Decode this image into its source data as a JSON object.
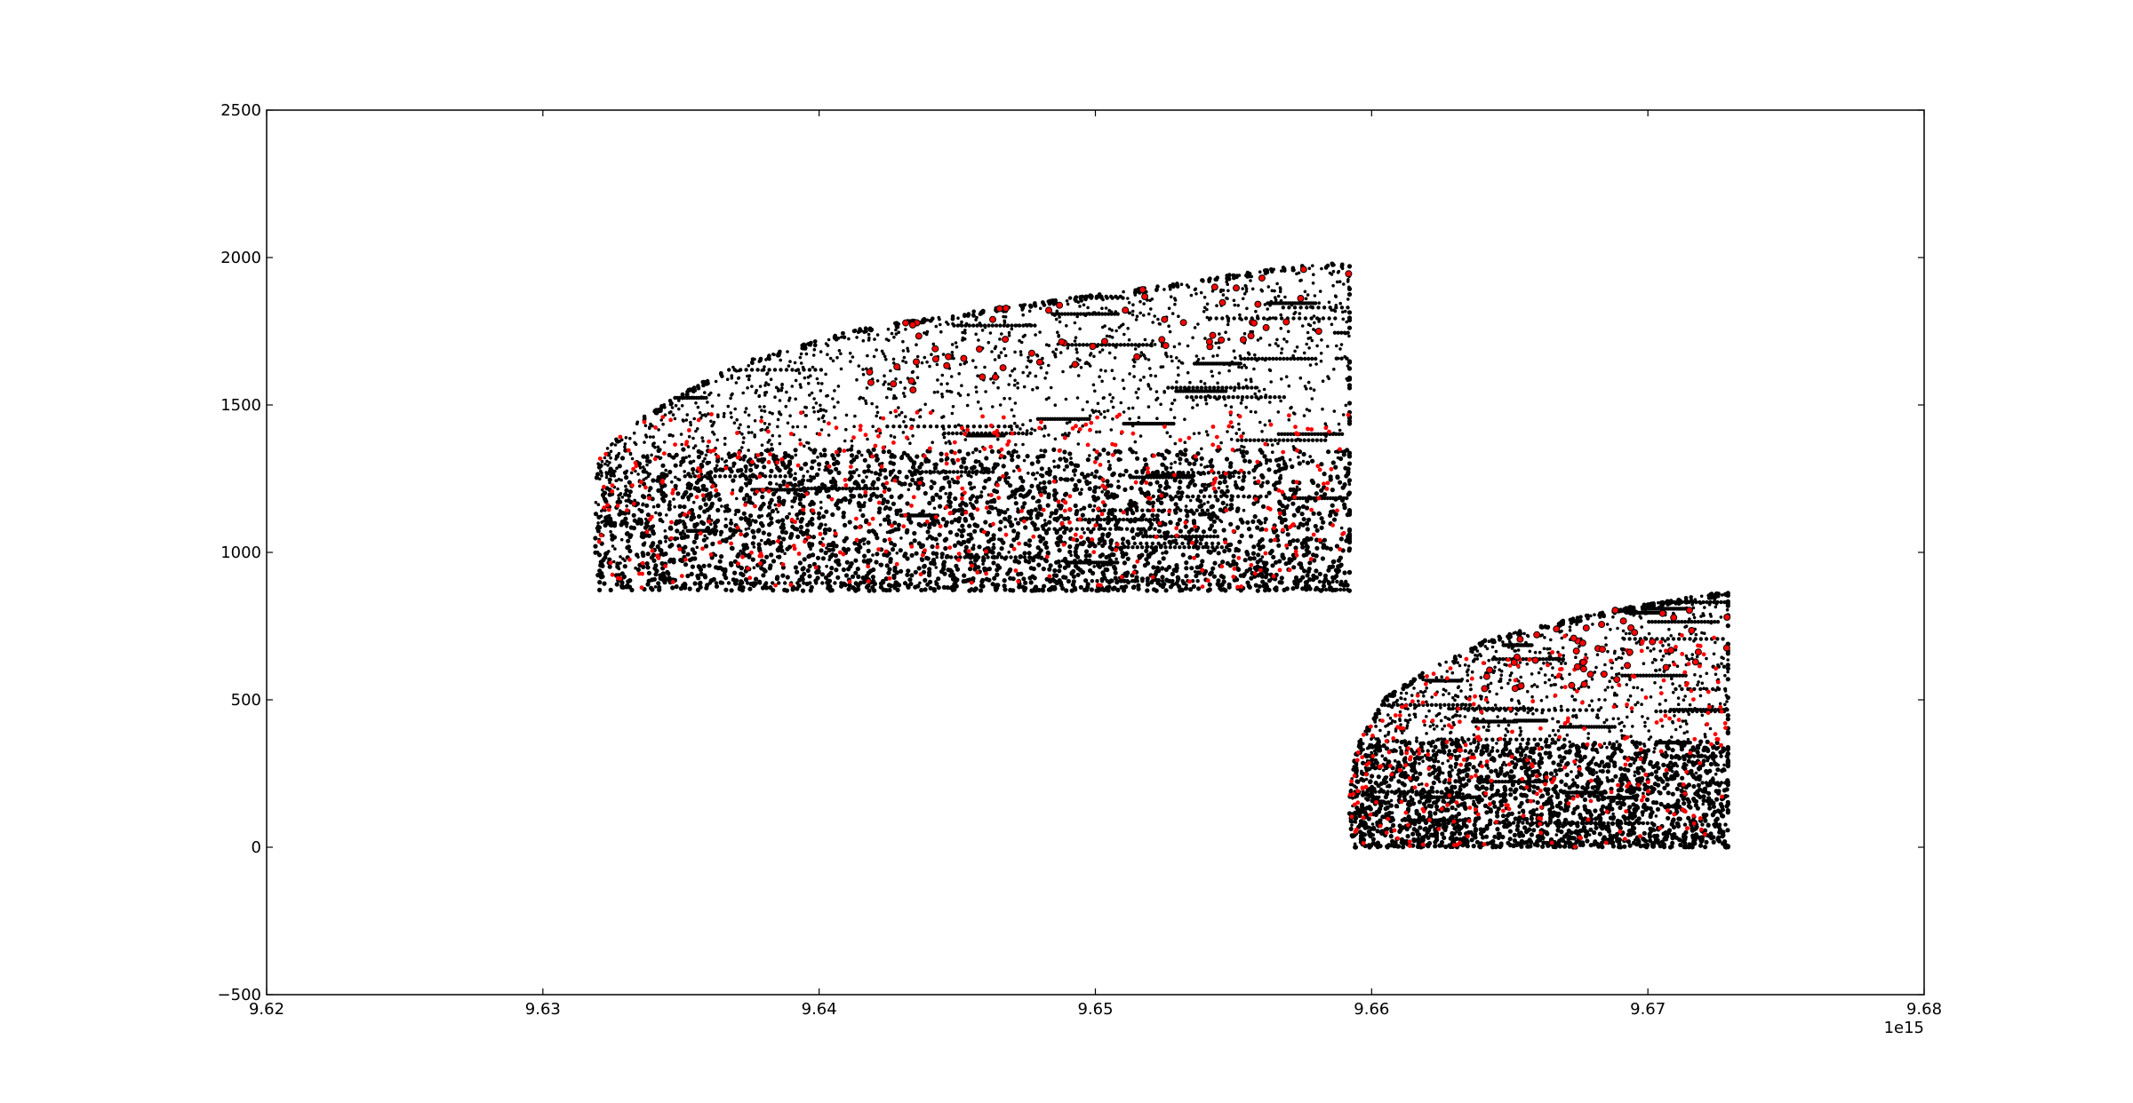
{
  "chart_data": {
    "type": "scatter",
    "title": "",
    "xlabel": "",
    "ylabel": "",
    "x_offset_label": "1e15",
    "xlim": [
      9.62,
      9.68
    ],
    "ylim": [
      -500,
      2500
    ],
    "x_ticks": [
      9.62,
      9.63,
      9.64,
      9.65,
      9.66,
      9.67,
      9.68
    ],
    "x_tick_labels": [
      "9.62",
      "9.63",
      "9.64",
      "9.65",
      "9.66",
      "9.67",
      "9.68"
    ],
    "y_ticks": [
      -500,
      0,
      500,
      1000,
      1500,
      2000,
      2500
    ],
    "y_tick_labels": [
      "−500",
      "0",
      "500",
      "1000",
      "1500",
      "2000",
      "2500"
    ],
    "grid": false,
    "legend": "none",
    "colors": {
      "primary": "#000000",
      "secondary": "#ff0000",
      "frame": "#000000"
    },
    "clusters": [
      {
        "x_range": [
          9.6319,
          9.6592
        ],
        "y_floor": 870,
        "envelope": [
          [
            9.6319,
            1230
          ],
          [
            9.632,
            1320
          ],
          [
            9.633,
            1420
          ],
          [
            9.6345,
            1510
          ],
          [
            9.637,
            1640
          ],
          [
            9.6415,
            1760
          ],
          [
            9.6465,
            1830
          ],
          [
            9.652,
            1900
          ],
          [
            9.6565,
            1965
          ],
          [
            9.6592,
            1985
          ]
        ],
        "dense_band_top": 1350,
        "red_band": [
          880,
          1480
        ]
      },
      {
        "x_range": [
          9.6592,
          9.6729
        ],
        "y_floor": 0,
        "envelope": [
          [
            9.6592,
            200
          ],
          [
            9.6595,
            350
          ],
          [
            9.6605,
            510
          ],
          [
            9.662,
            600
          ],
          [
            9.664,
            700
          ],
          [
            9.6665,
            760
          ],
          [
            9.669,
            810
          ],
          [
            9.671,
            840
          ],
          [
            9.6729,
            870
          ]
        ],
        "dense_band_top": 360,
        "red_band": [
          0,
          720
        ]
      }
    ]
  }
}
